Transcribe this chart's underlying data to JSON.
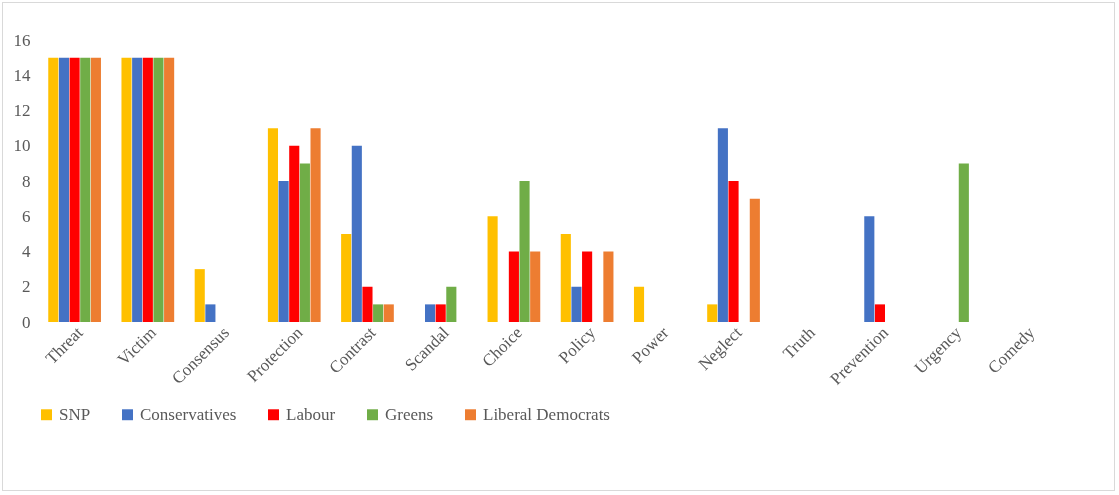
{
  "chart_data": {
    "type": "bar",
    "categories": [
      "Threat",
      "Victim",
      "Consensus",
      "Protection",
      "Contrast",
      "Scandal",
      "Choice",
      "Policy",
      "Power",
      "Neglect",
      "Truth",
      "Prevention",
      "Urgency",
      "Comedy"
    ],
    "series": [
      {
        "name": "SNP",
        "color": "#ffc000",
        "values": [
          15,
          15,
          3,
          11,
          5,
          0,
          6,
          5,
          2,
          1,
          0,
          0,
          0,
          0
        ]
      },
      {
        "name": "Conservatives",
        "color": "#4472c4",
        "values": [
          15,
          15,
          1,
          8,
          10,
          1,
          0,
          2,
          0,
          11,
          0,
          6,
          0,
          0
        ]
      },
      {
        "name": "Labour",
        "color": "#ff0000",
        "values": [
          15,
          15,
          0,
          10,
          2,
          1,
          4,
          4,
          0,
          8,
          0,
          1,
          0,
          0
        ]
      },
      {
        "name": "Greens",
        "color": "#70ad47",
        "values": [
          15,
          15,
          0,
          9,
          1,
          2,
          8,
          0,
          0,
          0,
          0,
          0,
          9,
          0
        ]
      },
      {
        "name": "Liberal Democrats",
        "color": "#ed7d31",
        "values": [
          15,
          15,
          0,
          11,
          1,
          0,
          4,
          4,
          0,
          7,
          0,
          0,
          0,
          0
        ]
      }
    ],
    "ylim": [
      0,
      16
    ],
    "yticks": [
      0,
      2,
      4,
      6,
      8,
      10,
      12,
      14,
      16
    ],
    "grid": false,
    "legend": "bottom"
  }
}
